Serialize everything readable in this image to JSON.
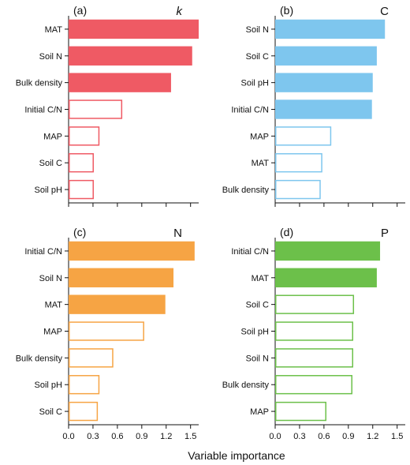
{
  "xlabel": "Variable importance",
  "chart_data": [
    {
      "type": "bar",
      "orientation": "horizontal",
      "panel": "(a)",
      "title": "k",
      "title_italic": true,
      "color": "#ef5a64",
      "categories": [
        "MAT",
        "Soil N",
        "Bulk density",
        "Initial C/N",
        "MAP",
        "Soil C",
        "Soil pH"
      ],
      "values": [
        1.6,
        1.52,
        1.26,
        0.66,
        0.38,
        0.31,
        0.31
      ],
      "filled": [
        true,
        true,
        true,
        false,
        false,
        false,
        false
      ],
      "xlim": [
        0,
        1.6
      ],
      "xticks": [
        0,
        0.3,
        0.6,
        0.9,
        1.2,
        1.5
      ],
      "xtick_labels_shown": false
    },
    {
      "type": "bar",
      "orientation": "horizontal",
      "panel": "(b)",
      "title": "C",
      "title_italic": false,
      "color": "#7ec6ee",
      "categories": [
        "Soil N",
        "Soil C",
        "Soil pH",
        "Initial C/N",
        "MAP",
        "MAT",
        "Bulk density"
      ],
      "values": [
        1.35,
        1.25,
        1.2,
        1.19,
        0.69,
        0.58,
        0.56
      ],
      "filled": [
        true,
        true,
        true,
        true,
        false,
        false,
        false
      ],
      "xlim": [
        0,
        1.6
      ],
      "xticks": [
        0,
        0.3,
        0.6,
        0.9,
        1.2,
        1.5
      ],
      "xtick_labels_shown": false
    },
    {
      "type": "bar",
      "orientation": "horizontal",
      "panel": "(c)",
      "title": "N",
      "title_italic": false,
      "color": "#f6a444",
      "categories": [
        "Initial C/N",
        "Soil N",
        "MAT",
        "MAP",
        "Bulk density",
        "Soil pH",
        "Soil C"
      ],
      "values": [
        1.55,
        1.29,
        1.19,
        0.93,
        0.55,
        0.38,
        0.36
      ],
      "filled": [
        true,
        true,
        true,
        false,
        false,
        false,
        false
      ],
      "xlim": [
        0,
        1.6
      ],
      "xticks": [
        0,
        0.3,
        0.6,
        0.9,
        1.2,
        1.5
      ],
      "xtick_labels": [
        "0.0",
        "0.3",
        "0.6",
        "0.9",
        "1.2",
        "1.5"
      ],
      "xtick_labels_shown": true
    },
    {
      "type": "bar",
      "orientation": "horizontal",
      "panel": "(d)",
      "title": "P",
      "title_italic": false,
      "color": "#6cc04a",
      "categories": [
        "Initial C/N",
        "MAT",
        "Soil C",
        "Soil pH",
        "Soil N",
        "Bulk density",
        "MAP"
      ],
      "values": [
        1.29,
        1.25,
        0.97,
        0.96,
        0.96,
        0.95,
        0.63
      ],
      "filled": [
        true,
        true,
        false,
        false,
        false,
        false,
        false
      ],
      "xlim": [
        0,
        1.6
      ],
      "xticks": [
        0,
        0.3,
        0.6,
        0.9,
        1.2,
        1.5
      ],
      "xtick_labels": [
        "0.0",
        "0.3",
        "0.6",
        "0.9",
        "1.2",
        "1.5"
      ],
      "xtick_labels_shown": true
    }
  ]
}
